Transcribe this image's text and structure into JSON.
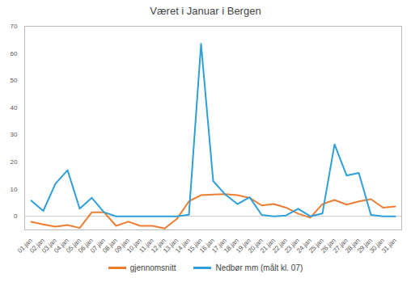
{
  "chart_data": {
    "type": "line",
    "title": "Været i Januar i Bergen",
    "categories": [
      "01.jan",
      "02.jan",
      "03.jan",
      "04.jan",
      "05.jan",
      "06.jan",
      "07.jan",
      "08.jan",
      "09.jan",
      "10.jan",
      "11.jan",
      "12.jan",
      "13.jan",
      "14.jan",
      "15.jan",
      "16.jan",
      "17.jan",
      "18.jan",
      "19.jan",
      "20.jan",
      "21.jan",
      "22.jan",
      "23.jan",
      "24.jan",
      "25.jan",
      "26.jan",
      "27.jan",
      "28.jan",
      "29.jan",
      "30.jan",
      "31.jan"
    ],
    "series": [
      {
        "name": "gjennomsnitt",
        "color": "#ed7d31",
        "values": [
          -2,
          -3,
          -3.8,
          -3.2,
          -4.3,
          1.5,
          1.5,
          -3.5,
          -2,
          -3.5,
          -3.5,
          -4.5,
          -1,
          5.5,
          7.8,
          8,
          8.2,
          7.8,
          6.8,
          4,
          4.5,
          3.2,
          1,
          -0.5,
          4.5,
          6,
          4.3,
          5.5,
          6.3,
          3.2,
          3.6
        ]
      },
      {
        "name": "Nedbør mm (målt kl. 07)",
        "color": "#2e9fd8",
        "values": [
          5.8,
          2,
          12,
          17,
          2.8,
          6.8,
          1.5,
          0,
          0,
          0,
          0,
          0,
          0,
          0.6,
          63.5,
          13,
          8,
          4.5,
          7,
          0.5,
          0,
          0.3,
          2.8,
          0,
          1,
          26.5,
          15,
          16,
          0.5,
          0,
          0
        ]
      }
    ],
    "ylim": [
      -5,
      70
    ],
    "yticks": [
      0,
      10,
      20,
      30,
      40,
      50,
      60,
      70
    ],
    "grid": false,
    "legend": "bottom"
  }
}
